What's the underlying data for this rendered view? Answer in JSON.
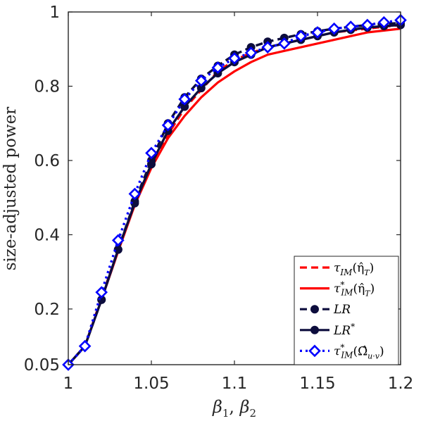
{
  "chart_data": {
    "type": "line",
    "xlabel": "β1, β2",
    "xlabel_base": "β",
    "xlabel_sub1": "1",
    "xlabel_sub2": "2",
    "ylabel": "size-adjusted power",
    "xlim": [
      1,
      1.2
    ],
    "ylim": [
      0.05,
      1
    ],
    "xticks": [
      1,
      1.05,
      1.1,
      1.15,
      1.2
    ],
    "xtick_labels": [
      "1",
      "1.05",
      "1.1",
      "1.15",
      "1.2"
    ],
    "yticks": [
      0.05,
      0.2,
      0.4,
      0.6,
      0.8,
      1
    ],
    "ytick_labels": [
      "0.05",
      "0.2",
      "0.4",
      "0.6",
      "0.8",
      "1"
    ],
    "grid": false,
    "legend_position": "bottom-right",
    "x": [
      1.0,
      1.01,
      1.02,
      1.03,
      1.04,
      1.05,
      1.06,
      1.07,
      1.08,
      1.09,
      1.1,
      1.11,
      1.12,
      1.13,
      1.14,
      1.15,
      1.16,
      1.17,
      1.18,
      1.19,
      1.2
    ],
    "series": [
      {
        "name": "τIM(η̂T)",
        "legend_main": "τ",
        "legend_sub": "IM",
        "legend_sup": "",
        "legend_arg": "(η̂",
        "legend_arg_sub": "T",
        "legend_close": ")",
        "color": "#ff0000",
        "style": "dashed",
        "marker": "none",
        "values": [
          0.05,
          0.1,
          0.23,
          0.36,
          0.48,
          0.59,
          0.67,
          0.74,
          0.79,
          0.84,
          0.87,
          0.89,
          0.905,
          0.915,
          0.925,
          0.935,
          0.945,
          0.95,
          0.955,
          0.96,
          0.965
        ]
      },
      {
        "name": "τ*IM(η̂T)",
        "legend_main": "τ",
        "legend_sub": "IM",
        "legend_sup": "*",
        "legend_arg": "(η̂",
        "legend_arg_sub": "T",
        "legend_close": ")",
        "color": "#ff0000",
        "style": "solid",
        "marker": "none",
        "values": [
          0.05,
          0.1,
          0.225,
          0.355,
          0.48,
          0.58,
          0.66,
          0.72,
          0.77,
          0.81,
          0.84,
          0.865,
          0.885,
          0.895,
          0.905,
          0.915,
          0.925,
          0.935,
          0.945,
          0.95,
          0.955
        ]
      },
      {
        "name": "LR",
        "legend_main": "LR",
        "legend_sub": "",
        "legend_sup": "",
        "legend_arg": "",
        "legend_arg_sub": "",
        "legend_close": "",
        "color": "#0d0d3d",
        "style": "dashed",
        "marker": "circle",
        "values": [
          0.05,
          0.1,
          0.225,
          0.36,
          0.49,
          0.6,
          0.7,
          0.77,
          0.82,
          0.855,
          0.885,
          0.905,
          0.92,
          0.93,
          0.94,
          0.948,
          0.955,
          0.96,
          0.965,
          0.968,
          0.97
        ]
      },
      {
        "name": "LR*",
        "legend_main": "LR",
        "legend_sub": "",
        "legend_sup": "*",
        "legend_arg": "",
        "legend_arg_sub": "",
        "legend_close": "",
        "color": "#0d0d3d",
        "style": "solid",
        "marker": "circle",
        "values": [
          0.05,
          0.1,
          0.225,
          0.36,
          0.485,
          0.59,
          0.68,
          0.745,
          0.795,
          0.835,
          0.865,
          0.885,
          0.905,
          0.915,
          0.925,
          0.935,
          0.945,
          0.952,
          0.958,
          0.962,
          0.965
        ]
      },
      {
        "name": "τ*IM(Ω̂u·v)",
        "legend_main": "τ",
        "legend_sub": "IM",
        "legend_sup": "*",
        "legend_arg": "(Ω̂",
        "legend_arg_sub": "u·v",
        "legend_close": ")",
        "color": "#0000ff",
        "style": "dotted",
        "marker": "diamond",
        "values": [
          0.05,
          0.1,
          0.245,
          0.385,
          0.51,
          0.62,
          0.695,
          0.765,
          0.815,
          0.85,
          0.875,
          0.89,
          0.905,
          0.915,
          0.935,
          0.945,
          0.955,
          0.96,
          0.965,
          0.972,
          0.978
        ]
      }
    ]
  }
}
